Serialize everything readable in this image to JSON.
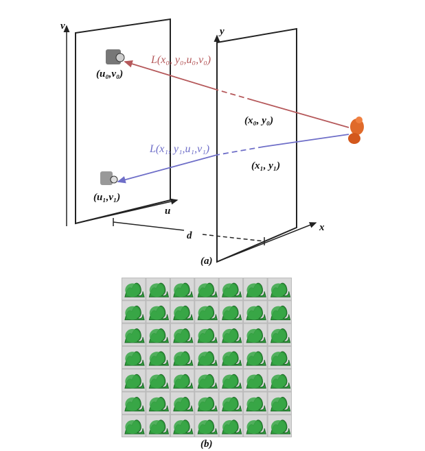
{
  "diagram": {
    "labels": {
      "v": "v",
      "u": "u",
      "y": "y",
      "x": "x",
      "d": "d"
    },
    "points": {
      "uv0": "(u₀,v₀)",
      "uv1": "(u₁,v₁)",
      "xy0": "(x₀, y₀)",
      "xy1": "(x₁, y₁)"
    },
    "rays": {
      "ray0": "L(x₀, y₀,u₀,v₀)",
      "ray1": "L(x₁, y₁,u₁,v₁)"
    },
    "captions": {
      "a": "(a)",
      "b": "(b)"
    }
  }
}
